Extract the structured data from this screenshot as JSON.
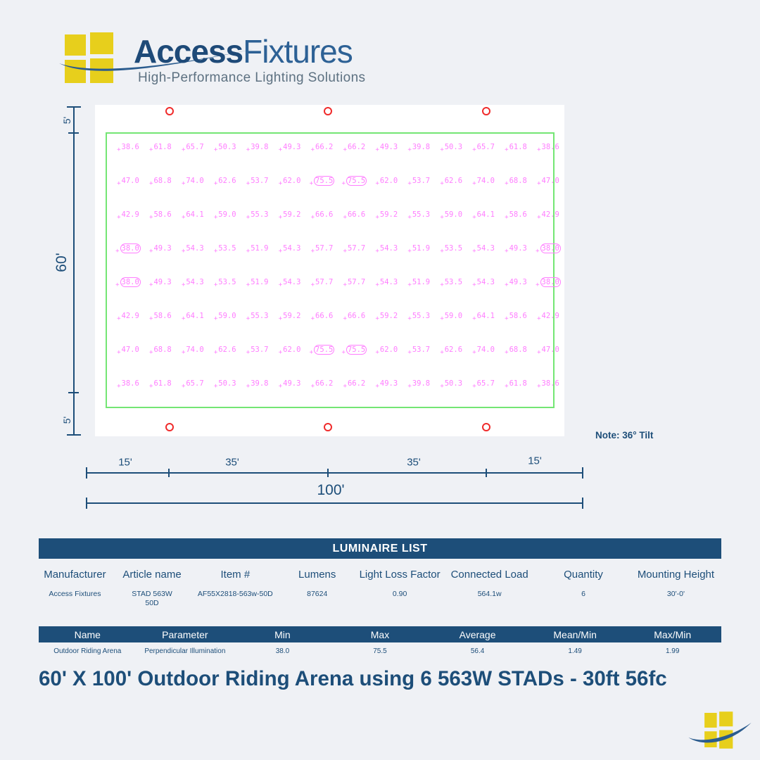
{
  "brand": {
    "name_bold": "Access",
    "name_light": "Fixtures",
    "tagline": "High-Performance Lighting Solutions"
  },
  "colors": {
    "navy": "#1d4e79",
    "brand_blue": "#2d6195",
    "logo_yellow": "#e7cf1c",
    "value_magenta": "#ff7dff",
    "boundary_green": "#74e674",
    "fixture_red": "#f02b2b",
    "background": "#eff1f5"
  },
  "diagram": {
    "note": "Note: 36° Tilt",
    "left_dimension": {
      "top": "5'",
      "middle": "60'",
      "bottom": "5'"
    },
    "bottom_dimension": {
      "segments": [
        "15'",
        "35'",
        "35'",
        "15'"
      ],
      "total": "100'"
    },
    "rows": [
      [
        "38.6",
        "61.8",
        "65.7",
        "50.3",
        "39.8",
        "49.3",
        "66.2",
        "66.2",
        "49.3",
        "39.8",
        "50.3",
        "65.7",
        "61.8",
        "38.6"
      ],
      [
        "47.0",
        "68.8",
        "74.0",
        "62.6",
        "53.7",
        "62.0",
        "75.5",
        "75.5",
        "62.0",
        "53.7",
        "62.6",
        "74.0",
        "68.8",
        "47.0"
      ],
      [
        "42.9",
        "58.6",
        "64.1",
        "59.0",
        "55.3",
        "59.2",
        "66.6",
        "66.6",
        "59.2",
        "55.3",
        "59.0",
        "64.1",
        "58.6",
        "42.9"
      ],
      [
        "38.0",
        "49.3",
        "54.3",
        "53.5",
        "51.9",
        "54.3",
        "57.7",
        "57.7",
        "54.3",
        "51.9",
        "53.5",
        "54.3",
        "49.3",
        "38.0"
      ],
      [
        "38.0",
        "49.3",
        "54.3",
        "53.5",
        "51.9",
        "54.3",
        "57.7",
        "57.7",
        "54.3",
        "51.9",
        "53.5",
        "54.3",
        "49.3",
        "38.0"
      ],
      [
        "42.9",
        "58.6",
        "64.1",
        "59.0",
        "55.3",
        "59.2",
        "66.6",
        "66.6",
        "59.2",
        "55.3",
        "59.0",
        "64.1",
        "58.6",
        "42.9"
      ],
      [
        "47.0",
        "68.8",
        "74.0",
        "62.6",
        "53.7",
        "62.0",
        "75.5",
        "75.5",
        "62.0",
        "53.7",
        "62.6",
        "74.0",
        "68.8",
        "47.0"
      ],
      [
        "38.6",
        "61.8",
        "65.7",
        "50.3",
        "39.8",
        "49.3",
        "66.2",
        "66.2",
        "49.3",
        "39.8",
        "50.3",
        "65.7",
        "61.8",
        "38.6"
      ]
    ],
    "circled": [
      [
        1,
        6
      ],
      [
        1,
        7
      ],
      [
        3,
        0
      ],
      [
        3,
        13
      ],
      [
        4,
        0
      ],
      [
        4,
        13
      ],
      [
        6,
        6
      ],
      [
        6,
        7
      ]
    ]
  },
  "luminaire_table": {
    "title": "LUMINAIRE LIST",
    "columns": [
      "Manufacturer",
      "Article name",
      "Item #",
      "Lumens",
      "Light Loss Factor",
      "Connected Load",
      "Quantity",
      "Mounting Height"
    ],
    "row": [
      "Access Fixtures",
      "STAD 563W\n50D",
      "AF55X2818-563w-50D",
      "87624",
      "0.90",
      "564.1w",
      "6",
      "30'-0'"
    ]
  },
  "summary_table": {
    "columns": [
      "Name",
      "Parameter",
      "Min",
      "Max",
      "Average",
      "Mean/Min",
      "Max/Min"
    ],
    "row": [
      "Outdoor Riding Arena",
      "Perpendicular Illumination",
      "38.0",
      "75.5",
      "56.4",
      "1.49",
      "1.99"
    ]
  },
  "page_title": "60' X 100' Outdoor Riding Arena using 6 563W STADs - 30ft 56fc",
  "chart_data": {
    "type": "heatmap",
    "title": "Perpendicular Illumination (fc), 60' x 100' Outdoor Riding Arena",
    "rows": [
      [
        38.6,
        61.8,
        65.7,
        50.3,
        39.8,
        49.3,
        66.2,
        66.2,
        49.3,
        39.8,
        50.3,
        65.7,
        61.8,
        38.6
      ],
      [
        47.0,
        68.8,
        74.0,
        62.6,
        53.7,
        62.0,
        75.5,
        75.5,
        62.0,
        53.7,
        62.6,
        74.0,
        68.8,
        47.0
      ],
      [
        42.9,
        58.6,
        64.1,
        59.0,
        55.3,
        59.2,
        66.6,
        66.6,
        59.2,
        55.3,
        59.0,
        64.1,
        58.6,
        42.9
      ],
      [
        38.0,
        49.3,
        54.3,
        53.5,
        51.9,
        54.3,
        57.7,
        57.7,
        54.3,
        51.9,
        53.5,
        54.3,
        49.3,
        38.0
      ],
      [
        38.0,
        49.3,
        54.3,
        53.5,
        51.9,
        54.3,
        57.7,
        57.7,
        54.3,
        51.9,
        53.5,
        54.3,
        49.3,
        38.0
      ],
      [
        42.9,
        58.6,
        64.1,
        59.0,
        55.3,
        59.2,
        66.6,
        66.6,
        59.2,
        55.3,
        59.0,
        64.1,
        58.6,
        42.9
      ],
      [
        47.0,
        68.8,
        74.0,
        62.6,
        53.7,
        62.0,
        75.5,
        75.5,
        62.0,
        53.7,
        62.6,
        74.0,
        68.8,
        47.0
      ],
      [
        38.6,
        61.8,
        65.7,
        50.3,
        39.8,
        49.3,
        66.2,
        66.2,
        49.3,
        39.8,
        50.3,
        65.7,
        61.8,
        38.6
      ]
    ],
    "min": 38.0,
    "max": 75.5,
    "average": 56.4,
    "mean_min": 1.49,
    "max_min": 1.99
  }
}
